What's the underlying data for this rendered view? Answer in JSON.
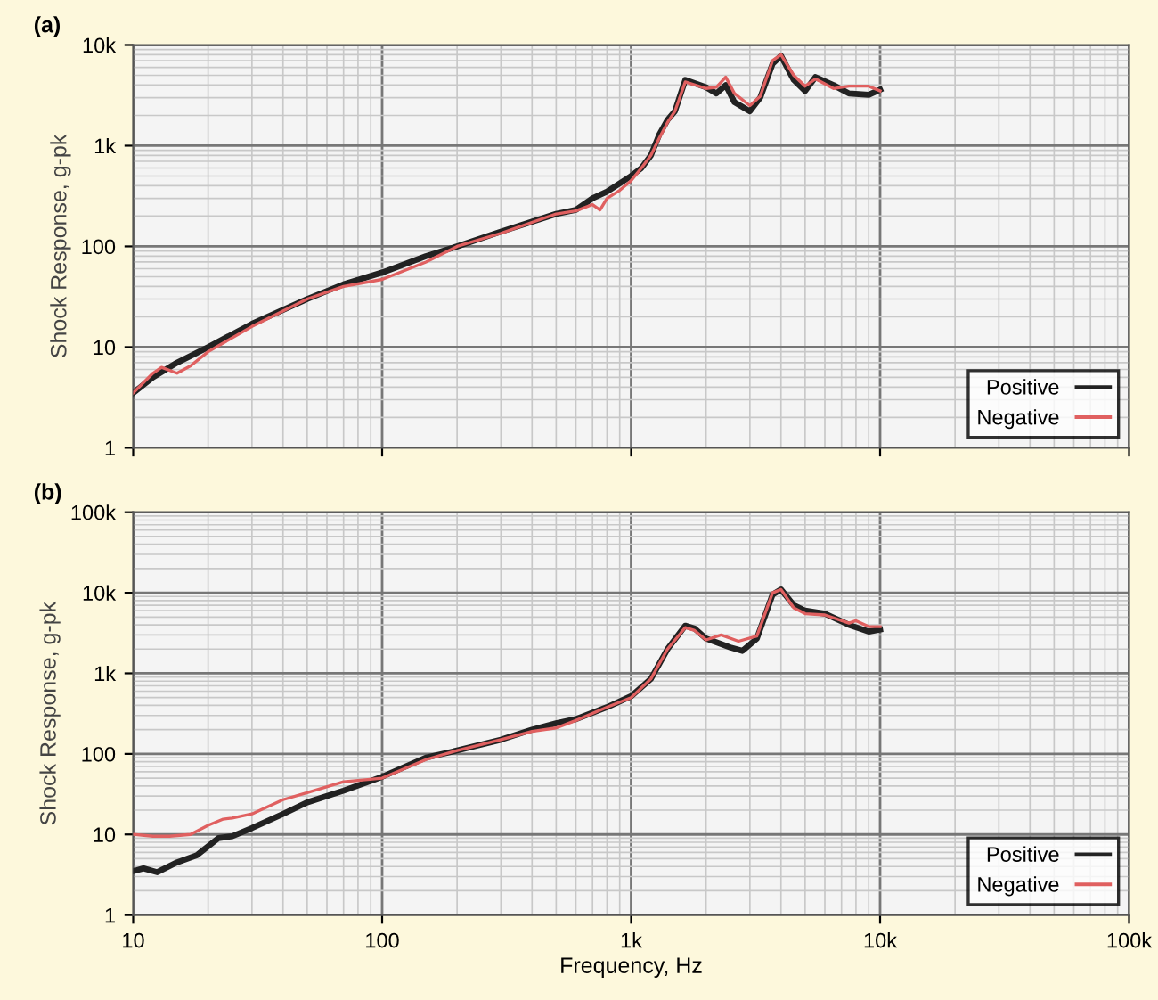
{
  "chart_data": [
    {
      "type": "line",
      "ylabel": "Shock Response, g-pk",
      "annotations": [
        "(a)"
      ],
      "log": "xy",
      "grid": true,
      "legend": "bottom right",
      "tick_labels": "y",
      "line_style": "solid",
      "xlim": [
        10,
        100000
      ],
      "xticks": [
        {
          "value": 10,
          "label": null
        },
        {
          "value": 100,
          "label": null
        },
        {
          "value": 1000,
          "label": null
        },
        {
          "value": 10000,
          "label": null
        },
        {
          "value": 100000,
          "label": null
        }
      ],
      "ylim": [
        1,
        10000
      ],
      "yticks": [
        {
          "value": 1,
          "label": "1"
        },
        {
          "value": 10,
          "label": "10"
        },
        {
          "value": 100,
          "label": "100"
        },
        {
          "value": 1000,
          "label": "1k"
        },
        {
          "value": 10000,
          "label": "10k"
        }
      ],
      "series": [
        {
          "name": "Positive",
          "color": "#222222",
          "x": [
            10,
            12,
            15,
            20,
            30,
            50,
            70,
            100,
            150,
            200,
            300,
            500,
            600,
            700,
            800,
            1000,
            1100,
            1200,
            1300,
            1400,
            1500,
            1650,
            2000,
            2200,
            2400,
            2600,
            3000,
            3300,
            3700,
            4000,
            4500,
            5000,
            5500,
            6500,
            7500,
            9000,
            10000
          ],
          "values": [
            3.5,
            5,
            7,
            10,
            17,
            30,
            42,
            55,
            80,
            100,
            140,
            210,
            230,
            300,
            350,
            500,
            600,
            800,
            1300,
            1800,
            2200,
            4500,
            3800,
            3300,
            4000,
            2700,
            2200,
            3000,
            6500,
            7800,
            4500,
            3500,
            4800,
            4000,
            3300,
            3200,
            3600
          ]
        },
        {
          "name": "Negative",
          "color": "#e06060",
          "x": [
            10,
            12,
            13,
            15,
            17,
            20,
            30,
            50,
            70,
            100,
            150,
            200,
            300,
            500,
            600,
            700,
            750,
            800,
            900,
            1000,
            1100,
            1200,
            1300,
            1400,
            1500,
            1650,
            2000,
            2200,
            2400,
            2600,
            3000,
            3300,
            3700,
            4000,
            4500,
            5000,
            5500,
            6500,
            7500,
            9000,
            10000
          ],
          "values": [
            3.5,
            5.5,
            6.3,
            5.5,
            6.5,
            9,
            16,
            30,
            40,
            47,
            70,
            100,
            135,
            210,
            225,
            260,
            230,
            300,
            360,
            450,
            600,
            800,
            1200,
            1700,
            2200,
            4300,
            3700,
            3800,
            4800,
            3300,
            2500,
            3100,
            7000,
            8000,
            5000,
            3900,
            4600,
            3700,
            3900,
            3900,
            3500
          ]
        }
      ]
    },
    {
      "type": "line",
      "xlabel": "Frequency, Hz",
      "ylabel": "Shock Response, g-pk",
      "annotations": [
        "(b)"
      ],
      "log": "xy",
      "grid": true,
      "legend": "bottom right",
      "line_style": "solid",
      "xlim": [
        10,
        100000
      ],
      "xticks": [
        {
          "value": 10,
          "label": "10"
        },
        {
          "value": 100,
          "label": "100"
        },
        {
          "value": 1000,
          "label": "1k"
        },
        {
          "value": 10000,
          "label": "10k"
        },
        {
          "value": 100000,
          "label": "100k"
        }
      ],
      "ylim": [
        1,
        100000
      ],
      "yticks": [
        {
          "value": 1,
          "label": "1"
        },
        {
          "value": 10,
          "label": "10"
        },
        {
          "value": 100,
          "label": "100"
        },
        {
          "value": 1000,
          "label": "1k"
        },
        {
          "value": 10000,
          "label": "10k"
        },
        {
          "value": 100000,
          "label": "100k"
        }
      ],
      "series": [
        {
          "name": "Positive",
          "color": "#222222",
          "x": [
            10,
            11,
            12.5,
            15,
            18,
            22,
            25,
            30,
            40,
            50,
            70,
            100,
            150,
            200,
            300,
            400,
            500,
            600,
            800,
            1000,
            1200,
            1400,
            1650,
            1800,
            2000,
            2500,
            2800,
            3200,
            3700,
            4000,
            4500,
            5000,
            6000,
            7500,
            9000,
            10000
          ],
          "values": [
            3.5,
            3.8,
            3.4,
            4.5,
            5.5,
            9,
            9.5,
            12,
            18,
            25,
            35,
            52,
            90,
            110,
            150,
            200,
            240,
            270,
            380,
            520,
            850,
            2000,
            3900,
            3600,
            2700,
            2100,
            1900,
            2700,
            9500,
            11000,
            7000,
            6000,
            5500,
            4000,
            3300,
            3500
          ]
        },
        {
          "name": "Negative",
          "color": "#e06060",
          "x": [
            10,
            12,
            14,
            17,
            20,
            23,
            25,
            30,
            40,
            50,
            70,
            100,
            150,
            200,
            300,
            400,
            500,
            600,
            800,
            1000,
            1200,
            1400,
            1650,
            1800,
            2000,
            2300,
            2700,
            3200,
            3700,
            4000,
            4500,
            5000,
            6000,
            7500,
            8000,
            9000,
            10000
          ],
          "values": [
            10,
            9.5,
            9.5,
            10,
            13,
            15.5,
            16,
            18,
            27,
            33,
            45,
            50,
            85,
            110,
            150,
            190,
            210,
            260,
            380,
            500,
            850,
            2000,
            3700,
            3400,
            2600,
            3000,
            2500,
            2900,
            10000,
            11000,
            6500,
            5500,
            5300,
            4200,
            4500,
            3800,
            3800
          ]
        }
      ]
    }
  ]
}
